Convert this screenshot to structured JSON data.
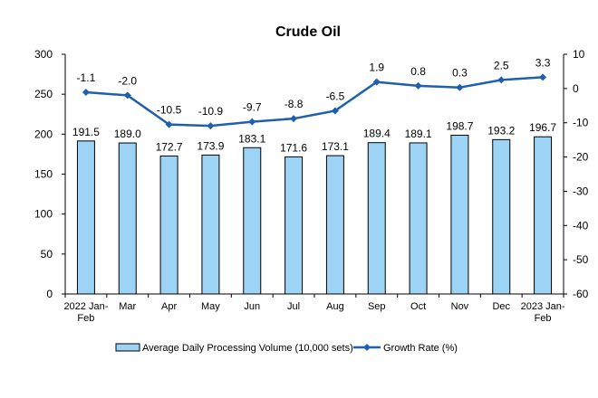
{
  "chart_data": {
    "type": "bar",
    "title": "Crude Oil",
    "categories": [
      "2022 Jan-Feb",
      "Mar",
      "Apr",
      "May",
      "Jun",
      "Jul",
      "Aug",
      "Sep",
      "Oct",
      "Nov",
      "Dec",
      "2023 Jan-Feb"
    ],
    "category_lines": [
      [
        "2022 Jan-",
        "Feb"
      ],
      [
        "Mar"
      ],
      [
        "Apr"
      ],
      [
        "May"
      ],
      [
        "Jun"
      ],
      [
        "Jul"
      ],
      [
        "Aug"
      ],
      [
        "Sep"
      ],
      [
        "Oct"
      ],
      [
        "Nov"
      ],
      [
        "Dec"
      ],
      [
        "2023 Jan-",
        "Feb"
      ]
    ],
    "series": [
      {
        "name": "Average Daily Processing Volume (10,000 sets)",
        "type": "bar",
        "axis": "left",
        "color": "#9dd3f5",
        "values": [
          191.5,
          189.0,
          172.7,
          173.9,
          183.1,
          171.6,
          173.1,
          189.4,
          189.1,
          198.7,
          193.2,
          196.7
        ],
        "labels": [
          "191.5",
          "189.0",
          "172.7",
          "173.9",
          "183.1",
          "171.6",
          "173.1",
          "189.4",
          "189.1",
          "198.7",
          "193.2",
          "196.7"
        ]
      },
      {
        "name": "Growth Rate (%)",
        "type": "line",
        "axis": "right",
        "color": "#1f5fad",
        "values": [
          -1.1,
          -2.0,
          -10.5,
          -10.9,
          -9.7,
          -8.8,
          -6.5,
          1.9,
          0.8,
          0.3,
          2.5,
          3.3
        ],
        "labels": [
          "-1.1",
          "-2.0",
          "-10.5",
          "-10.9",
          "-9.7",
          "-8.8",
          "-6.5",
          "1.9",
          "0.8",
          "0.3",
          "2.5",
          "3.3"
        ]
      }
    ],
    "y_left": {
      "min": 0,
      "max": 300,
      "ticks": [
        0,
        50,
        100,
        150,
        200,
        250,
        300
      ]
    },
    "y_right": {
      "min": -60,
      "max": 10,
      "ticks": [
        -60,
        -50,
        -40,
        -30,
        -20,
        -10,
        0,
        10
      ]
    },
    "grid": false,
    "legend_position": "bottom"
  }
}
